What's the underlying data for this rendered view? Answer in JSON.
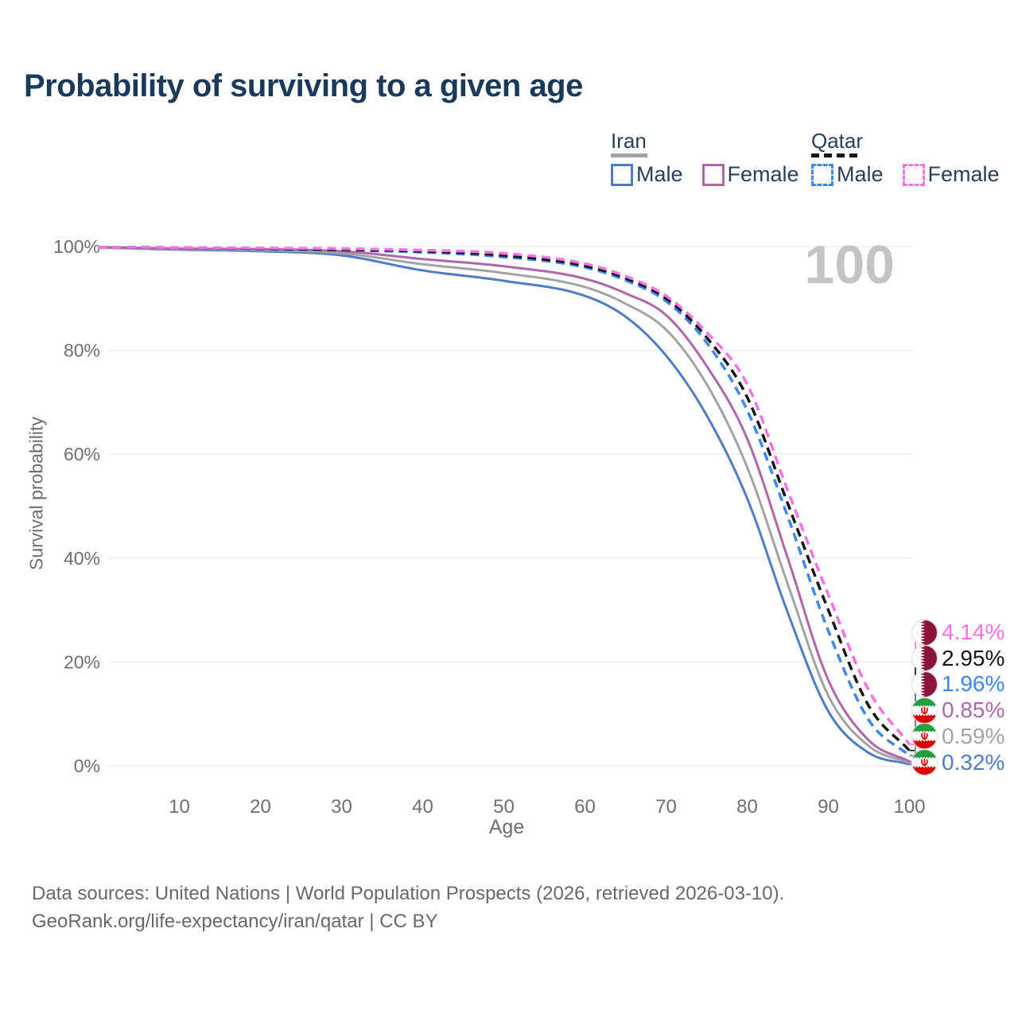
{
  "title": "Probability of surviving to a given age",
  "watermark_age": "100",
  "legend": {
    "groups": [
      {
        "label": "Iran",
        "swatch_color": "#a3a3a3",
        "swatch_style": "solid",
        "items": [
          {
            "label": "Male",
            "color": "#4d7dc8",
            "style": "solid"
          },
          {
            "label": "Female",
            "color": "#b066a8",
            "style": "solid"
          }
        ]
      },
      {
        "label": "Qatar",
        "swatch_color": "#161616",
        "swatch_style": "dashed",
        "items": [
          {
            "label": "Male",
            "color": "#3e86f0",
            "style": "dashed"
          },
          {
            "label": "Female",
            "color": "#f871e6",
            "style": "dashed"
          }
        ]
      }
    ]
  },
  "chart_data": {
    "type": "line",
    "title": "Probability of surviving to a given age",
    "xlabel": "Age",
    "ylabel": "Survival probability",
    "xlim": [
      0,
      100
    ],
    "ylim": [
      0,
      100
    ],
    "grid": "horizontal-only",
    "legend_position": "top-right",
    "x_ticks": [
      10,
      20,
      30,
      40,
      50,
      60,
      70,
      80,
      90,
      100
    ],
    "y_ticks": [
      {
        "value": 0,
        "label": "0%"
      },
      {
        "value": 20,
        "label": "20%"
      },
      {
        "value": 40,
        "label": "40%"
      },
      {
        "value": 60,
        "label": "60%"
      },
      {
        "value": 80,
        "label": "80%"
      },
      {
        "value": 100,
        "label": "100%"
      }
    ],
    "x": [
      0,
      10,
      20,
      30,
      40,
      50,
      60,
      65,
      70,
      75,
      80,
      85,
      90,
      95,
      100
    ],
    "series": [
      {
        "id": "iran-male",
        "name": "Iran — Male",
        "country": "Iran",
        "sex": "Male",
        "flag": "iran",
        "color": "#4d7dc8",
        "dash": false,
        "end_label": "0.32%",
        "values": [
          99.8,
          99.4,
          99.1,
          98.3,
          95.4,
          93.4,
          90.5,
          86.5,
          79.0,
          67.5,
          51.5,
          29.5,
          10.5,
          2.5,
          0.32
        ]
      },
      {
        "id": "iran-all",
        "name": "Iran",
        "country": "Iran",
        "sex": "All",
        "flag": "iran",
        "color": "#a3a3a3",
        "dash": false,
        "end_label": "0.59%",
        "values": [
          99.8,
          99.5,
          99.3,
          98.7,
          96.6,
          94.9,
          92.2,
          89.0,
          84.0,
          73.5,
          57.5,
          35.0,
          13.5,
          3.8,
          0.59
        ]
      },
      {
        "id": "iran-female",
        "name": "Iran — Female",
        "country": "Iran",
        "sex": "Female",
        "flag": "iran",
        "color": "#b066a8",
        "dash": false,
        "end_label": "0.85%",
        "values": [
          99.9,
          99.6,
          99.5,
          99.1,
          97.6,
          96.2,
          93.8,
          91.0,
          86.8,
          77.0,
          63.0,
          40.0,
          16.5,
          4.9,
          0.85
        ]
      },
      {
        "id": "qatar-male",
        "name": "Qatar — Male",
        "country": "Qatar",
        "sex": "Male",
        "flag": "qatar",
        "color": "#3e86f0",
        "dash": true,
        "end_label": "1.96%",
        "values": [
          99.9,
          99.7,
          99.5,
          99.3,
          98.9,
          98.0,
          96.0,
          93.5,
          89.5,
          81.5,
          68.5,
          48.0,
          26.0,
          8.8,
          1.96
        ]
      },
      {
        "id": "qatar-all",
        "name": "Qatar",
        "country": "Qatar",
        "sex": "All",
        "flag": "qatar",
        "color": "#161616",
        "dash": true,
        "end_label": "2.95%",
        "values": [
          99.9,
          99.8,
          99.6,
          99.4,
          99.1,
          98.3,
          96.3,
          93.9,
          90.0,
          82.5,
          71.0,
          50.5,
          30.0,
          11.5,
          2.95
        ]
      },
      {
        "id": "qatar-female",
        "name": "Qatar — Female",
        "country": "Qatar",
        "sex": "Female",
        "flag": "qatar",
        "color": "#f871e6",
        "dash": true,
        "end_label": "4.14%",
        "values": [
          99.9,
          99.8,
          99.7,
          99.6,
          99.3,
          98.7,
          96.7,
          94.3,
          90.5,
          83.5,
          73.5,
          53.0,
          33.0,
          14.5,
          4.14
        ]
      }
    ]
  },
  "footer": {
    "line1": "Data sources: United Nations | World Population Prospects (2026, retrieved 2026-03-10).",
    "line2": "GeoRank.org/life-expectancy/iran/qatar | CC BY"
  }
}
